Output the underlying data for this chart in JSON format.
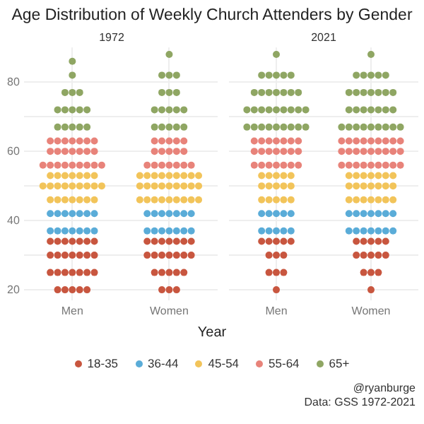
{
  "chart_data": [
    {
      "type": "scatter",
      "title": "Age Distribution of Weekly Church Attenders by Gender",
      "subtitle": "1972",
      "xlabel": "Year",
      "categories": [
        "Men",
        "Women"
      ],
      "ylim": [
        17,
        90
      ],
      "yticks": [
        20,
        {
          "value": 30,
          "label": null
        },
        40,
        {
          "value": 50,
          "label": null
        },
        60,
        {
          "value": 70,
          "label": null
        },
        80
      ],
      "grid": true,
      "marker": "circle",
      "legend": "bottom",
      "series": [
        {
          "name": "18-35",
          "color": "#c8563f",
          "x": [
            "Men",
            "Men",
            "Men",
            "Men",
            "Men",
            "Men",
            "Men",
            "Men",
            "Men",
            "Men",
            "Men",
            "Men",
            "Men",
            "Men",
            "Men",
            "Men",
            "Men",
            "Men",
            "Men",
            "Men",
            "Men",
            "Men",
            "Men",
            "Men",
            "Men",
            "Men",
            "Women",
            "Women",
            "Women",
            "Women",
            "Women",
            "Women",
            "Women",
            "Women",
            "Women",
            "Women",
            "Women",
            "Women",
            "Women",
            "Women",
            "Women",
            "Women",
            "Women",
            "Women",
            "Women",
            "Women",
            "Women",
            "Women"
          ],
          "values": [
            20,
            20,
            20,
            20,
            20,
            25,
            25,
            25,
            25,
            25,
            25,
            25,
            30,
            30,
            30,
            30,
            30,
            30,
            30,
            34,
            34,
            34,
            34,
            34,
            34,
            34,
            20,
            20,
            20,
            25,
            25,
            25,
            25,
            25,
            30,
            30,
            30,
            30,
            30,
            30,
            30,
            34,
            34,
            34,
            34,
            34,
            34,
            34
          ]
        },
        {
          "name": "36-44",
          "color": "#5aacd8",
          "x": [
            "Men",
            "Men",
            "Men",
            "Men",
            "Men",
            "Men",
            "Men",
            "Men",
            "Men",
            "Men",
            "Men",
            "Men",
            "Men",
            "Men",
            "Women",
            "Women",
            "Women",
            "Women",
            "Women",
            "Women",
            "Women",
            "Women",
            "Women",
            "Women",
            "Women",
            "Women",
            "Women",
            "Women"
          ],
          "values": [
            37,
            37,
            37,
            37,
            37,
            37,
            37,
            42,
            42,
            42,
            42,
            42,
            42,
            42,
            37,
            37,
            37,
            37,
            37,
            37,
            37,
            42,
            42,
            42,
            42,
            42,
            42,
            42
          ]
        },
        {
          "name": "45-54",
          "color": "#f2c45a",
          "x": [
            "Men",
            "Men",
            "Men",
            "Men",
            "Men",
            "Men",
            "Men",
            "Men",
            "Men",
            "Men",
            "Men",
            "Men",
            "Men",
            "Men",
            "Men",
            "Men",
            "Men",
            "Men",
            "Men",
            "Men",
            "Men",
            "Men",
            "Men",
            "Women",
            "Women",
            "Women",
            "Women",
            "Women",
            "Women",
            "Women",
            "Women",
            "Women",
            "Women",
            "Women",
            "Women",
            "Women",
            "Women",
            "Women",
            "Women",
            "Women",
            "Women",
            "Women",
            "Women",
            "Women",
            "Women",
            "Women",
            "Women",
            "Women",
            "Women",
            "Women"
          ],
          "values": [
            46,
            46,
            46,
            46,
            46,
            46,
            46,
            50,
            50,
            50,
            50,
            50,
            50,
            50,
            50,
            50,
            53,
            53,
            53,
            53,
            53,
            53,
            53,
            46,
            46,
            46,
            46,
            46,
            46,
            46,
            46,
            46,
            50,
            50,
            50,
            50,
            50,
            50,
            50,
            50,
            50,
            53,
            53,
            53,
            53,
            53,
            53,
            53,
            53,
            53
          ]
        },
        {
          "name": "55-64",
          "color": "#e8837a",
          "x": [
            "Men",
            "Men",
            "Men",
            "Men",
            "Men",
            "Men",
            "Men",
            "Men",
            "Men",
            "Men",
            "Men",
            "Men",
            "Men",
            "Men",
            "Men",
            "Men",
            "Men",
            "Men",
            "Men",
            "Men",
            "Men",
            "Men",
            "Men",
            "Women",
            "Women",
            "Women",
            "Women",
            "Women",
            "Women",
            "Women",
            "Women",
            "Women",
            "Women",
            "Women",
            "Women",
            "Women",
            "Women",
            "Women",
            "Women",
            "Women"
          ],
          "values": [
            56,
            56,
            56,
            56,
            56,
            56,
            56,
            56,
            56,
            60,
            60,
            60,
            60,
            60,
            60,
            60,
            63,
            63,
            63,
            63,
            63,
            63,
            63,
            56,
            56,
            56,
            56,
            56,
            56,
            56,
            60,
            60,
            60,
            60,
            60,
            63,
            63,
            63,
            63,
            63
          ]
        },
        {
          "name": "65+",
          "color": "#8fa663",
          "x": [
            "Men",
            "Men",
            "Men",
            "Men",
            "Men",
            "Men",
            "Men",
            "Men",
            "Men",
            "Men",
            "Men",
            "Men",
            "Men",
            "Men",
            "Men",
            "Women",
            "Women",
            "Women",
            "Women",
            "Women",
            "Women",
            "Women",
            "Women",
            "Women",
            "Women",
            "Women",
            "Women",
            "Women",
            "Women",
            "Women",
            "Women",
            "Women"
          ],
          "values": [
            67,
            67,
            67,
            67,
            67,
            72,
            72,
            72,
            72,
            72,
            77,
            77,
            77,
            82,
            86,
            67,
            67,
            67,
            67,
            67,
            72,
            72,
            72,
            72,
            72,
            77,
            77,
            77,
            82,
            82,
            82,
            88
          ]
        }
      ]
    },
    {
      "type": "scatter",
      "subtitle": "2021",
      "categories": [
        "Men",
        "Women"
      ],
      "ylim": [
        17,
        90
      ],
      "yticks": [
        20,
        {
          "value": 30,
          "label": null
        },
        40,
        {
          "value": 50,
          "label": null
        },
        60,
        {
          "value": 70,
          "label": null
        },
        80
      ],
      "tick_labels": "x",
      "grid": true,
      "marker": "circle",
      "annotations": [
        "@ryanburge",
        "Data: GSS 1972-2021"
      ],
      "series": [
        {
          "color": "#c8563f",
          "x": [
            "Men",
            "Men",
            "Men",
            "Men",
            "Men",
            "Men",
            "Men",
            "Men",
            "Men",
            "Men",
            "Men",
            "Men",
            "Women",
            "Women",
            "Women",
            "Women",
            "Women",
            "Women",
            "Women",
            "Women",
            "Women",
            "Women",
            "Women",
            "Women",
            "Women",
            "Women"
          ],
          "values": [
            20,
            25,
            25,
            25,
            30,
            30,
            30,
            34,
            34,
            34,
            34,
            34,
            20,
            25,
            25,
            25,
            30,
            30,
            30,
            30,
            30,
            34,
            34,
            34,
            34,
            34
          ]
        },
        {
          "color": "#5aacd8",
          "x": [
            "Men",
            "Men",
            "Men",
            "Men",
            "Men",
            "Men",
            "Men",
            "Men",
            "Men",
            "Men",
            "Women",
            "Women",
            "Women",
            "Women",
            "Women",
            "Women",
            "Women",
            "Women",
            "Women",
            "Women",
            "Women",
            "Women",
            "Women",
            "Women"
          ],
          "values": [
            37,
            37,
            37,
            37,
            37,
            42,
            42,
            42,
            42,
            42,
            37,
            37,
            37,
            37,
            37,
            37,
            37,
            42,
            42,
            42,
            42,
            42,
            42,
            42
          ]
        },
        {
          "color": "#f2c45a",
          "x": [
            "Men",
            "Men",
            "Men",
            "Men",
            "Men",
            "Men",
            "Men",
            "Men",
            "Men",
            "Men",
            "Men",
            "Men",
            "Men",
            "Men",
            "Men",
            "Women",
            "Women",
            "Women",
            "Women",
            "Women",
            "Women",
            "Women",
            "Women",
            "Women",
            "Women",
            "Women",
            "Women",
            "Women",
            "Women",
            "Women",
            "Women",
            "Women",
            "Women",
            "Women",
            "Women",
            "Women"
          ],
          "values": [
            46,
            46,
            46,
            46,
            46,
            50,
            50,
            50,
            50,
            50,
            53,
            53,
            53,
            53,
            53,
            46,
            46,
            46,
            46,
            46,
            46,
            46,
            50,
            50,
            50,
            50,
            50,
            50,
            50,
            53,
            53,
            53,
            53,
            53,
            53,
            53
          ]
        },
        {
          "color": "#e8837a",
          "x": [
            "Men",
            "Men",
            "Men",
            "Men",
            "Men",
            "Men",
            "Men",
            "Men",
            "Men",
            "Men",
            "Men",
            "Men",
            "Men",
            "Men",
            "Men",
            "Men",
            "Men",
            "Men",
            "Men",
            "Men",
            "Men",
            "Women",
            "Women",
            "Women",
            "Women",
            "Women",
            "Women",
            "Women",
            "Women",
            "Women",
            "Women",
            "Women",
            "Women",
            "Women",
            "Women",
            "Women",
            "Women",
            "Women",
            "Women",
            "Women",
            "Women",
            "Women",
            "Women",
            "Women",
            "Women",
            "Women",
            "Women",
            "Women"
          ],
          "values": [
            56,
            56,
            56,
            56,
            56,
            56,
            56,
            60,
            60,
            60,
            60,
            60,
            60,
            60,
            63,
            63,
            63,
            63,
            63,
            63,
            63,
            56,
            56,
            56,
            56,
            56,
            56,
            56,
            56,
            56,
            60,
            60,
            60,
            60,
            60,
            60,
            60,
            60,
            60,
            63,
            63,
            63,
            63,
            63,
            63,
            63,
            63,
            63
          ]
        },
        {
          "color": "#8fa663",
          "x": [
            "Men",
            "Men",
            "Men",
            "Men",
            "Men",
            "Men",
            "Men",
            "Men",
            "Men",
            "Men",
            "Men",
            "Men",
            "Men",
            "Men",
            "Men",
            "Men",
            "Men",
            "Men",
            "Men",
            "Men",
            "Men",
            "Men",
            "Men",
            "Men",
            "Men",
            "Men",
            "Men",
            "Men",
            "Men",
            "Men",
            "Men",
            "Women",
            "Women",
            "Women",
            "Women",
            "Women",
            "Women",
            "Women",
            "Women",
            "Women",
            "Women",
            "Women",
            "Women",
            "Women",
            "Women",
            "Women",
            "Women",
            "Women",
            "Women",
            "Women",
            "Women",
            "Women",
            "Women",
            "Women",
            "Women",
            "Women",
            "Women",
            "Women",
            "Women",
            "Women"
          ],
          "values": [
            67,
            67,
            67,
            67,
            67,
            67,
            67,
            67,
            67,
            72,
            72,
            72,
            72,
            72,
            72,
            72,
            72,
            72,
            77,
            77,
            77,
            77,
            77,
            77,
            77,
            82,
            82,
            82,
            82,
            82,
            88,
            67,
            67,
            67,
            67,
            67,
            67,
            67,
            67,
            67,
            72,
            72,
            72,
            72,
            72,
            72,
            72,
            77,
            77,
            77,
            77,
            77,
            77,
            77,
            82,
            82,
            82,
            82,
            82,
            88
          ]
        }
      ]
    }
  ]
}
